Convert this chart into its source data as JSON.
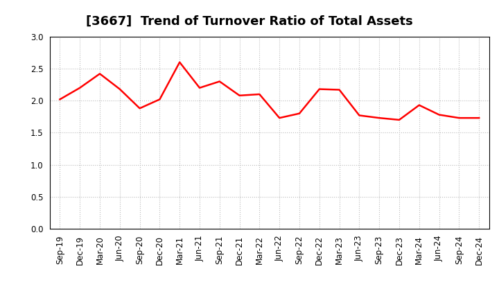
{
  "title": "[3667]  Trend of Turnover Ratio of Total Assets",
  "labels": [
    "Sep-19",
    "Dec-19",
    "Mar-20",
    "Jun-20",
    "Sep-20",
    "Dec-20",
    "Mar-21",
    "Jun-21",
    "Sep-21",
    "Dec-21",
    "Mar-22",
    "Jun-22",
    "Sep-22",
    "Dec-22",
    "Mar-23",
    "Jun-23",
    "Sep-23",
    "Dec-23",
    "Mar-24",
    "Jun-24",
    "Sep-24",
    "Dec-24"
  ],
  "values": [
    2.02,
    2.2,
    2.42,
    2.18,
    1.88,
    2.02,
    2.6,
    2.2,
    2.3,
    2.08,
    2.1,
    1.73,
    1.8,
    2.18,
    2.17,
    1.77,
    1.73,
    1.7,
    1.93,
    1.78,
    1.73,
    1.73
  ],
  "line_color": "#FF0000",
  "line_width": 1.8,
  "ylim": [
    0.0,
    3.0
  ],
  "yticks": [
    0.0,
    0.5,
    1.0,
    1.5,
    2.0,
    2.5,
    3.0
  ],
  "title_fontsize": 13,
  "tick_fontsize": 8.5,
  "background_color": "#ffffff",
  "plot_bg_color": "#ffffff",
  "grid_color": "#bbbbbb"
}
